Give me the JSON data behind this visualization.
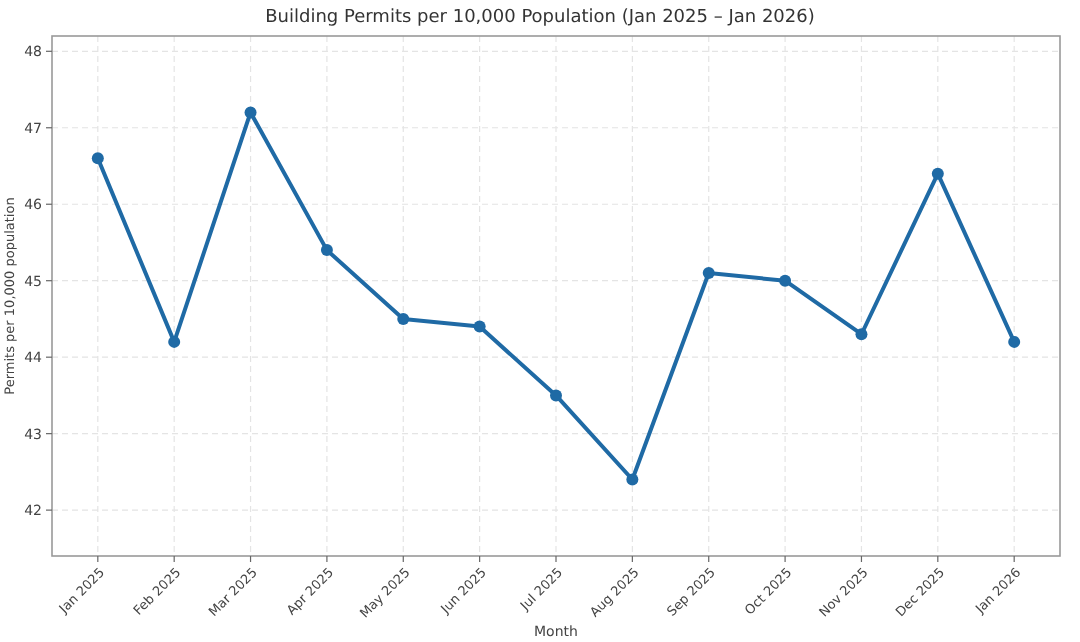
{
  "chart_data": {
    "type": "line",
    "title": "Building Permits per 10,000 Population (Jan 2025 – Jan 2026)",
    "xlabel": "Month",
    "ylabel": "Permits per 10,000 population",
    "categories": [
      "Jan 2025",
      "Feb 2025",
      "Mar 2025",
      "Apr 2025",
      "May 2025",
      "Jun 2025",
      "Jul 2025",
      "Aug 2025",
      "Sep 2025",
      "Oct 2025",
      "Nov 2025",
      "Dec 2025",
      "Jan 2026"
    ],
    "series": [
      {
        "color": "#1f6aa5",
        "values": [
          46.6,
          44.2,
          47.2,
          45.4,
          44.5,
          44.4,
          43.5,
          42.4,
          45.1,
          45.0,
          44.3,
          46.4,
          44.2
        ]
      }
    ],
    "ylim": [
      41.4,
      48.2
    ],
    "yticks": [
      42,
      43,
      44,
      45,
      46,
      47,
      48
    ],
    "grid": true,
    "marker": "circle",
    "line_style": "solid"
  }
}
